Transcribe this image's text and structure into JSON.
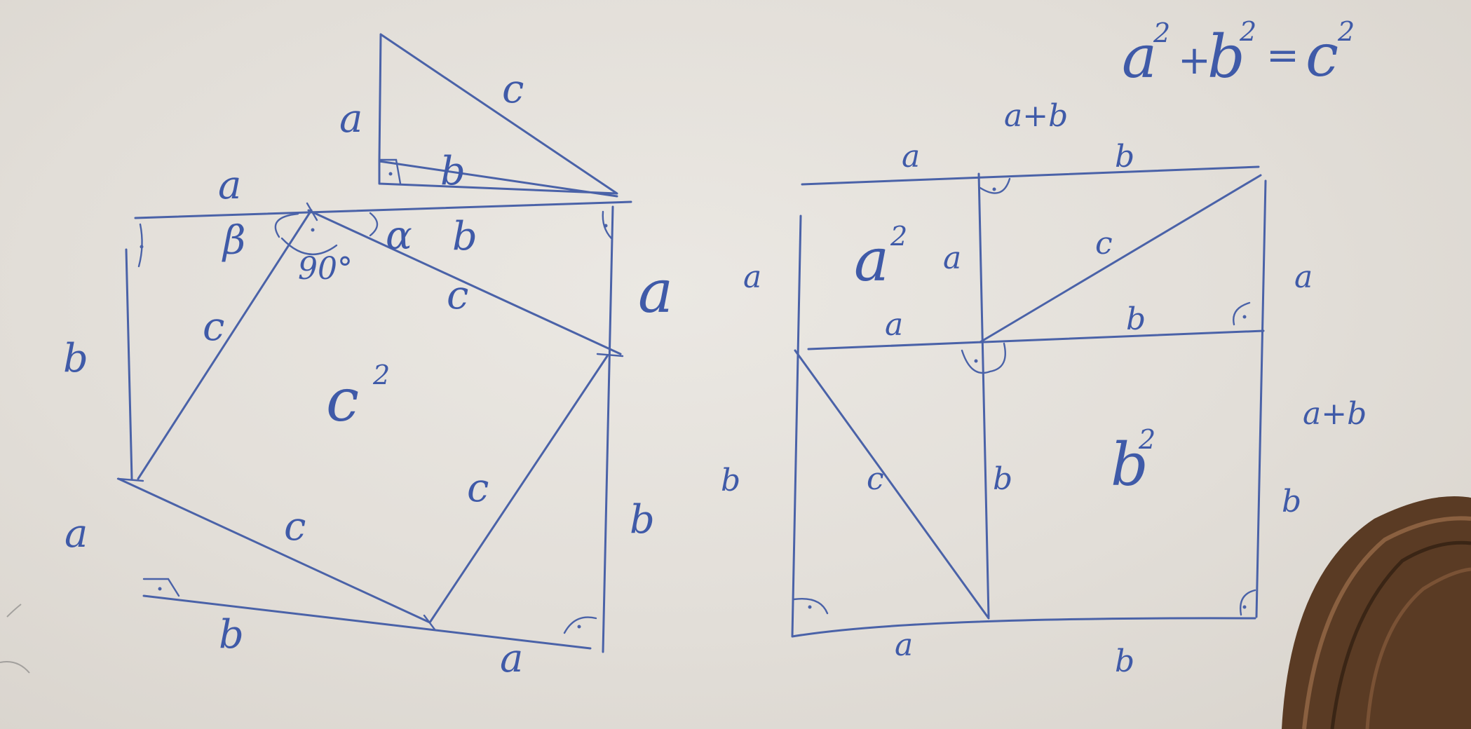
{
  "formula": {
    "a": "a",
    "b": "b",
    "c": "c",
    "exp": "2",
    "plus": "+",
    "eq": "="
  },
  "triangle": {
    "a": "a",
    "b": "b",
    "c": "c"
  },
  "left_square": {
    "top_a": "a",
    "top_b": "b",
    "right_a": "a",
    "right_b": "b",
    "bottom_b": "b",
    "bottom_a": "a",
    "left_b": "b",
    "left_a": "a",
    "beta": "β",
    "alpha": "α",
    "angle": "90°",
    "c_labels": [
      "c",
      "c",
      "c",
      "c"
    ],
    "area_base": "c",
    "area_exp": "2"
  },
  "right_square": {
    "top_sum": "a+b",
    "top_a": "a",
    "top_b": "b",
    "right_a": "a",
    "right_sum": "a+b",
    "right_b": "b",
    "left_a": "a",
    "left_b": "b",
    "bottom_a": "a",
    "bottom_b": "b",
    "inner_a_vertical": "a",
    "inner_a_horizontal": "a",
    "inner_b_horizontal": "b",
    "inner_b_vertical": "b",
    "c_upper": "c",
    "c_lower": "c",
    "area_a": "a",
    "area_b": "b",
    "area_exp": "2"
  }
}
